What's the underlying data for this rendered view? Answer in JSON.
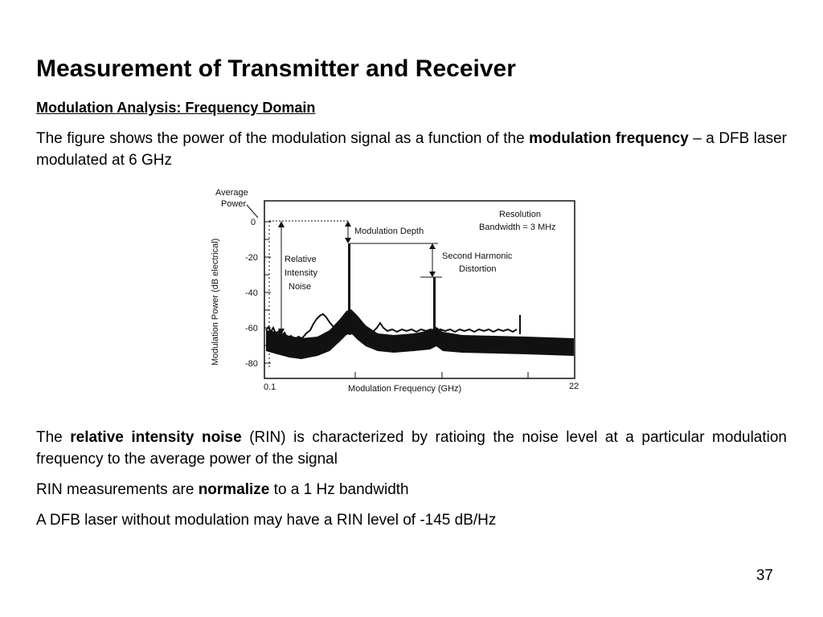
{
  "slide": {
    "title": "Measurement of Transmitter and Receiver",
    "subtitle": "Modulation Analysis: Frequency Domain",
    "intro": {
      "before": "The figure shows the power of the modulation signal as a function of the ",
      "bold": "modulation frequency",
      "after": " – a DFB laser modulated at 6 GHz"
    },
    "rin": {
      "before": "The ",
      "bold": "relative intensity noise",
      "after": " (RIN) is characterized by ratioing the noise level at a particular modulation frequency to the average power of the signal"
    },
    "normalize": {
      "before": "RIN measurements are ",
      "bold": "normalize",
      "after": " to a 1 Hz bandwidth"
    },
    "dfb_line": "A DFB laser without modulation may have a RIN level of -145 dB/Hz",
    "page_number": "37"
  },
  "figure": {
    "average_power_label_1": "Average",
    "average_power_label_2": "Power",
    "ylabel": "Modulation Power (dB electrical)",
    "xlabel": "Modulation Frequency (GHz)",
    "x_start_label": "0.1",
    "x_end_label": "22",
    "y_ticks": [
      "0",
      "-20",
      "-40",
      "-60",
      "-80"
    ],
    "annotations": {
      "modulation_depth": "Modulation Depth",
      "resolution_1": "Resolution",
      "resolution_2": "Bandwidth = 3 MHz",
      "rin_1": "Relative",
      "rin_2": "Intensity",
      "rin_3": "Noise",
      "harmonic_1": "Second Harmonic",
      "harmonic_2": "Distortion"
    }
  }
}
